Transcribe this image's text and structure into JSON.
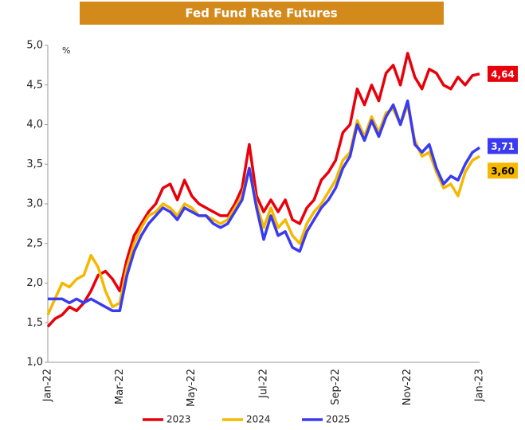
{
  "chart_data": {
    "type": "line",
    "title": "Fed Fund Rate Futures",
    "y_unit": "%",
    "categories": [
      "Jan-22",
      null,
      null,
      null,
      null,
      null,
      null,
      null,
      null,
      null,
      "Mar-22",
      null,
      null,
      null,
      null,
      null,
      null,
      null,
      null,
      null,
      "May-22",
      null,
      null,
      null,
      null,
      null,
      null,
      null,
      null,
      null,
      "Jul-22",
      null,
      null,
      null,
      null,
      null,
      null,
      null,
      null,
      null,
      "Sep-22",
      null,
      null,
      null,
      null,
      null,
      null,
      null,
      null,
      null,
      "Nov-22",
      null,
      null,
      null,
      null,
      null,
      null,
      null,
      null,
      null,
      "Jan-23"
    ],
    "series": [
      {
        "name": "2023",
        "color": "#e8000b",
        "values": [
          1.45,
          1.55,
          1.6,
          1.7,
          1.65,
          1.75,
          1.9,
          2.1,
          2.15,
          2.05,
          1.9,
          2.3,
          2.6,
          2.75,
          2.9,
          3.0,
          3.2,
          3.25,
          3.05,
          3.3,
          3.1,
          3.0,
          2.95,
          2.9,
          2.85,
          2.85,
          3.0,
          3.2,
          3.75,
          3.1,
          2.9,
          3.05,
          2.9,
          3.05,
          2.8,
          2.75,
          2.95,
          3.05,
          3.3,
          3.4,
          3.55,
          3.9,
          4.0,
          4.45,
          4.25,
          4.5,
          4.3,
          4.65,
          4.75,
          4.5,
          4.9,
          4.6,
          4.45,
          4.7,
          4.65,
          4.5,
          4.45,
          4.6,
          4.5,
          4.62,
          4.64
        ],
        "value_labels": [
          null,
          null,
          null,
          null,
          null,
          null,
          null,
          null,
          null,
          null,
          null,
          null,
          null,
          null,
          null,
          null,
          null,
          null,
          null,
          null,
          null,
          null,
          null,
          null,
          null,
          null,
          null,
          null,
          null,
          null,
          null,
          null,
          null,
          null,
          null,
          null,
          null,
          null,
          null,
          null,
          null,
          null,
          null,
          null,
          null,
          null,
          null,
          null,
          null,
          null,
          null,
          null,
          null,
          null,
          null,
          null,
          null,
          null,
          null,
          null,
          "4,64"
        ]
      },
      {
        "name": "2024",
        "color": "#f5b800",
        "values": [
          1.6,
          1.8,
          2.0,
          1.95,
          2.05,
          2.1,
          2.35,
          2.2,
          1.9,
          1.7,
          1.75,
          2.2,
          2.5,
          2.7,
          2.85,
          2.9,
          3.0,
          2.95,
          2.85,
          3.0,
          2.95,
          2.85,
          2.85,
          2.8,
          2.75,
          2.8,
          2.95,
          3.1,
          3.45,
          3.0,
          2.7,
          2.95,
          2.7,
          2.8,
          2.6,
          2.5,
          2.75,
          2.9,
          3.0,
          3.15,
          3.3,
          3.55,
          3.65,
          4.05,
          3.85,
          4.1,
          3.9,
          4.15,
          4.2,
          4.0,
          4.25,
          3.8,
          3.6,
          3.65,
          3.4,
          3.2,
          3.25,
          3.1,
          3.4,
          3.55,
          3.6
        ],
        "value_labels": [
          null,
          null,
          null,
          null,
          null,
          null,
          null,
          null,
          null,
          null,
          null,
          null,
          null,
          null,
          null,
          null,
          null,
          null,
          null,
          null,
          null,
          null,
          null,
          null,
          null,
          null,
          null,
          null,
          null,
          null,
          null,
          null,
          null,
          null,
          null,
          null,
          null,
          null,
          null,
          null,
          null,
          null,
          null,
          null,
          null,
          null,
          null,
          null,
          null,
          null,
          null,
          null,
          null,
          null,
          null,
          null,
          null,
          null,
          null,
          null,
          "3,60"
        ]
      },
      {
        "name": "2025",
        "color": "#3a3af0",
        "values": [
          1.8,
          1.8,
          1.8,
          1.75,
          1.8,
          1.75,
          1.8,
          1.75,
          1.7,
          1.65,
          1.65,
          2.1,
          2.4,
          2.6,
          2.75,
          2.85,
          2.95,
          2.9,
          2.8,
          2.95,
          2.9,
          2.85,
          2.85,
          2.75,
          2.7,
          2.75,
          2.9,
          3.05,
          3.45,
          2.95,
          2.55,
          2.85,
          2.6,
          2.65,
          2.45,
          2.4,
          2.65,
          2.8,
          2.95,
          3.05,
          3.2,
          3.45,
          3.6,
          4.0,
          3.8,
          4.05,
          3.85,
          4.1,
          4.25,
          4.0,
          4.3,
          3.75,
          3.65,
          3.75,
          3.45,
          3.25,
          3.35,
          3.3,
          3.5,
          3.65,
          3.71
        ],
        "value_labels": [
          null,
          null,
          null,
          null,
          null,
          null,
          null,
          null,
          null,
          null,
          null,
          null,
          null,
          null,
          null,
          null,
          null,
          null,
          null,
          null,
          null,
          null,
          null,
          null,
          null,
          null,
          null,
          null,
          null,
          null,
          null,
          null,
          null,
          null,
          null,
          null,
          null,
          null,
          null,
          null,
          null,
          null,
          null,
          null,
          null,
          null,
          null,
          null,
          null,
          null,
          null,
          null,
          null,
          null,
          null,
          null,
          null,
          null,
          null,
          null,
          "3,71"
        ]
      }
    ],
    "ylim": [
      1.0,
      5.0
    ],
    "yticks": [
      {
        "value": 1.0,
        "label": "1,0"
      },
      {
        "value": 1.5,
        "label": "1,5"
      },
      {
        "value": 2.0,
        "label": "2,0"
      },
      {
        "value": 2.5,
        "label": "2,5"
      },
      {
        "value": 3.0,
        "label": "3,0"
      },
      {
        "value": 3.5,
        "label": "3,5"
      },
      {
        "value": 4.0,
        "label": "4,0"
      },
      {
        "value": 4.5,
        "label": "4,5"
      },
      {
        "value": 5.0,
        "label": "5,0"
      }
    ],
    "grid": false,
    "legend": "bottom"
  }
}
